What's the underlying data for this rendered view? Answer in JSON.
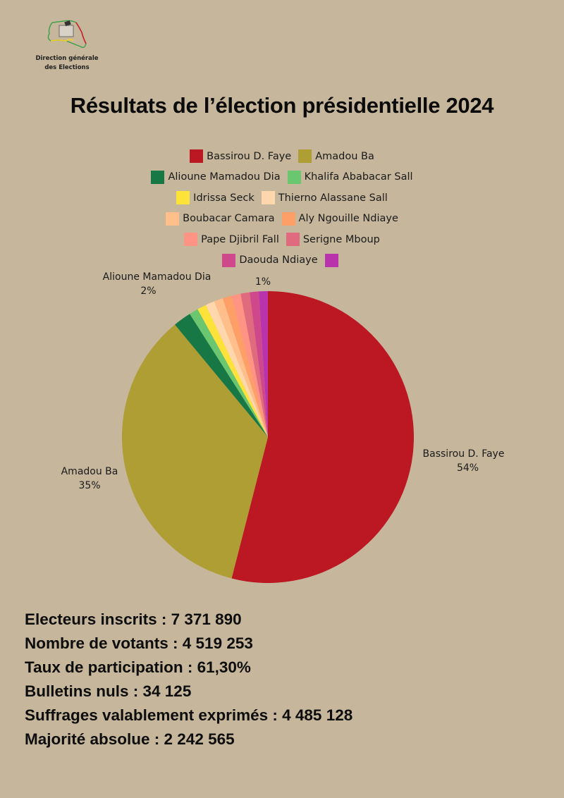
{
  "logo": {
    "line1": "Direction générale",
    "line2": "des Elections"
  },
  "title": "Résultats de l’élection présidentielle 2024",
  "legend": {
    "rows": [
      [
        {
          "name": "Bassirou D. Faye",
          "color": "#bc1823"
        },
        {
          "name": "Amadou Ba",
          "color": "#af9e33"
        }
      ],
      [
        {
          "name": "Alioune Mamadou Dia",
          "color": "#177845"
        },
        {
          "name": "Khalifa Ababacar Sall",
          "color": "#6ac66f"
        }
      ],
      [
        {
          "name": "Idrissa Seck",
          "color": "#fde23a"
        },
        {
          "name": "Thierno Alassane Sall",
          "color": "#ffd7ad"
        }
      ],
      [
        {
          "name": "Boubacar Camara",
          "color": "#ffbe8a"
        },
        {
          "name": "Aly Ngouille Ndiaye",
          "color": "#ff9f68"
        }
      ],
      [
        {
          "name": "Pape Djibril Fall",
          "color": "#ff9384"
        },
        {
          "name": "Serigne Mboup",
          "color": "#e06a7e"
        }
      ],
      [
        {
          "name": "Daouda Ndiaye",
          "color": "#d0488c"
        },
        {
          "name": "",
          "color": "#b934ac"
        }
      ]
    ]
  },
  "pie_labels": {
    "faye": {
      "name": "Bassirou D. Faye",
      "pct": "54%"
    },
    "ba": {
      "name": "Amadou Ba",
      "pct": "35%"
    },
    "dia": {
      "name": "Alioune Mamadou Dia",
      "pct": "2%"
    },
    "small": {
      "pct": "1%"
    }
  },
  "stats": {
    "inscrits": "Electeurs inscrits : 7 371 890",
    "votants": "Nombre de votants : 4 519 253",
    "participation": "Taux de participation : 61,30%",
    "nuls": "Bulletins nuls : 34 125",
    "exprimes": "Suffrages valablement exprimés : 4 485 128",
    "majorite": "Majorité absolue : 2 242 565"
  },
  "chart_data": {
    "type": "pie",
    "title": "Résultats de l’élection présidentielle 2024",
    "legend_position": "top",
    "start_angle": "12 o'clock, clockwise",
    "categories": [
      "Bassirou D. Faye",
      "Amadou Ba",
      "Alioune Mamadou Dia",
      "Khalifa Ababacar Sall",
      "Idrissa Seck",
      "Thierno Alassane Sall",
      "Boubacar Camara",
      "Aly Ngouille Ndiaye",
      "Pape Djibril Fall",
      "Serigne Mboup",
      "Daouda Ndiaye",
      "(unlabeled)"
    ],
    "values": [
      54,
      35,
      2,
      1,
      1,
      1,
      1,
      1,
      1,
      1,
      1,
      1
    ],
    "colors": [
      "#bc1823",
      "#af9e33",
      "#177845",
      "#6ac66f",
      "#fde23a",
      "#ffd7ad",
      "#ffbe8a",
      "#ff9f68",
      "#ff9384",
      "#e06a7e",
      "#d0488c",
      "#b934ac"
    ],
    "data_labels": [
      {
        "category": "Bassirou D. Faye",
        "text": "54%"
      },
      {
        "category": "Amadou Ba",
        "text": "35%"
      },
      {
        "category": "Alioune Mamadou Dia",
        "text": "2%"
      },
      {
        "category": "(small slice)",
        "text": "1%"
      }
    ]
  }
}
